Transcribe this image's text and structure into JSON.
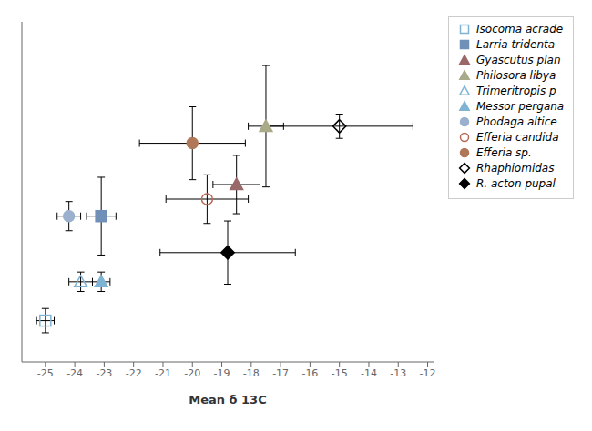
{
  "chart_data": {
    "type": "scatter",
    "xlabel": "Mean δ 13C",
    "xlim": [
      -25.8,
      -11.8
    ],
    "ylim": [
      -0.5,
      13.5
    ],
    "xticks": [
      -25,
      -24,
      -23,
      -22,
      -21,
      -20,
      -19,
      -18,
      -17,
      -16,
      -15,
      -14,
      -13,
      -12
    ],
    "yticks": [],
    "tick_labels": "x",
    "grid": false,
    "legend": "right",
    "series": [
      {
        "name": "Isocoma acrade",
        "color": "#7fb3d3",
        "marker": "square_open",
        "x": [
          -25.0
        ],
        "y": [
          1.2
        ],
        "xerr": [
          0.3
        ],
        "yerr": [
          0.5
        ]
      },
      {
        "name": "Larria tridenta",
        "color": "#7090b8",
        "marker": "square",
        "x": [
          -23.1
        ],
        "y": [
          5.5
        ],
        "xerr": [
          0.5
        ],
        "yerr": [
          1.6
        ]
      },
      {
        "name": "Gyascutus plan",
        "color": "#9a6868",
        "marker": "triangle",
        "x": [
          -18.5
        ],
        "y": [
          6.8
        ],
        "xerr": [
          0.8
        ],
        "yerr": [
          1.2
        ]
      },
      {
        "name": "Philosora libya",
        "color": "#a8aa88",
        "marker": "triangle",
        "x": [
          -17.5
        ],
        "y": [
          9.2
        ],
        "xerr": [
          0.6
        ],
        "yerr": [
          2.5
        ]
      },
      {
        "name": "Trimeritropis p",
        "color": "#7fb3d3",
        "marker": "triangle_open",
        "x": [
          -23.8
        ],
        "y": [
          2.8
        ],
        "xerr": [
          0.4
        ],
        "yerr": [
          0.4
        ]
      },
      {
        "name": "Messor pergana",
        "color": "#7fb3d3",
        "marker": "triangle",
        "x": [
          -23.1
        ],
        "y": [
          2.8
        ],
        "xerr": [
          0.3
        ],
        "yerr": [
          0.4
        ]
      },
      {
        "name": "Phodaga altice",
        "color": "#9ab0cc",
        "marker": "circle",
        "x": [
          -24.2
        ],
        "y": [
          5.5
        ],
        "xerr": [
          0.4
        ],
        "yerr": [
          0.6
        ]
      },
      {
        "name": "Efferia candida",
        "color": "#b86858",
        "marker": "circle_open",
        "x": [
          -19.5
        ],
        "y": [
          6.2
        ],
        "xerr": [
          1.4
        ],
        "yerr": [
          1.0
        ]
      },
      {
        "name": "Efferia sp.",
        "color": "#b07858",
        "marker": "circle",
        "x": [
          -20.0
        ],
        "y": [
          8.5
        ],
        "xerr": [
          1.8
        ],
        "yerr": [
          1.5
        ]
      },
      {
        "name": "Rhaphiomidas",
        "color": "black",
        "marker": "diamond_open",
        "x": [
          -15.0
        ],
        "y": [
          9.2
        ],
        "xerr": [
          2.5
        ],
        "yerr": [
          0.5
        ]
      },
      {
        "name": "R. acton pupal",
        "color": "black",
        "marker": "diamond",
        "x": [
          -18.8
        ],
        "y": [
          4.0
        ],
        "xerr": [
          2.3
        ],
        "yerr": [
          1.3
        ]
      }
    ]
  }
}
